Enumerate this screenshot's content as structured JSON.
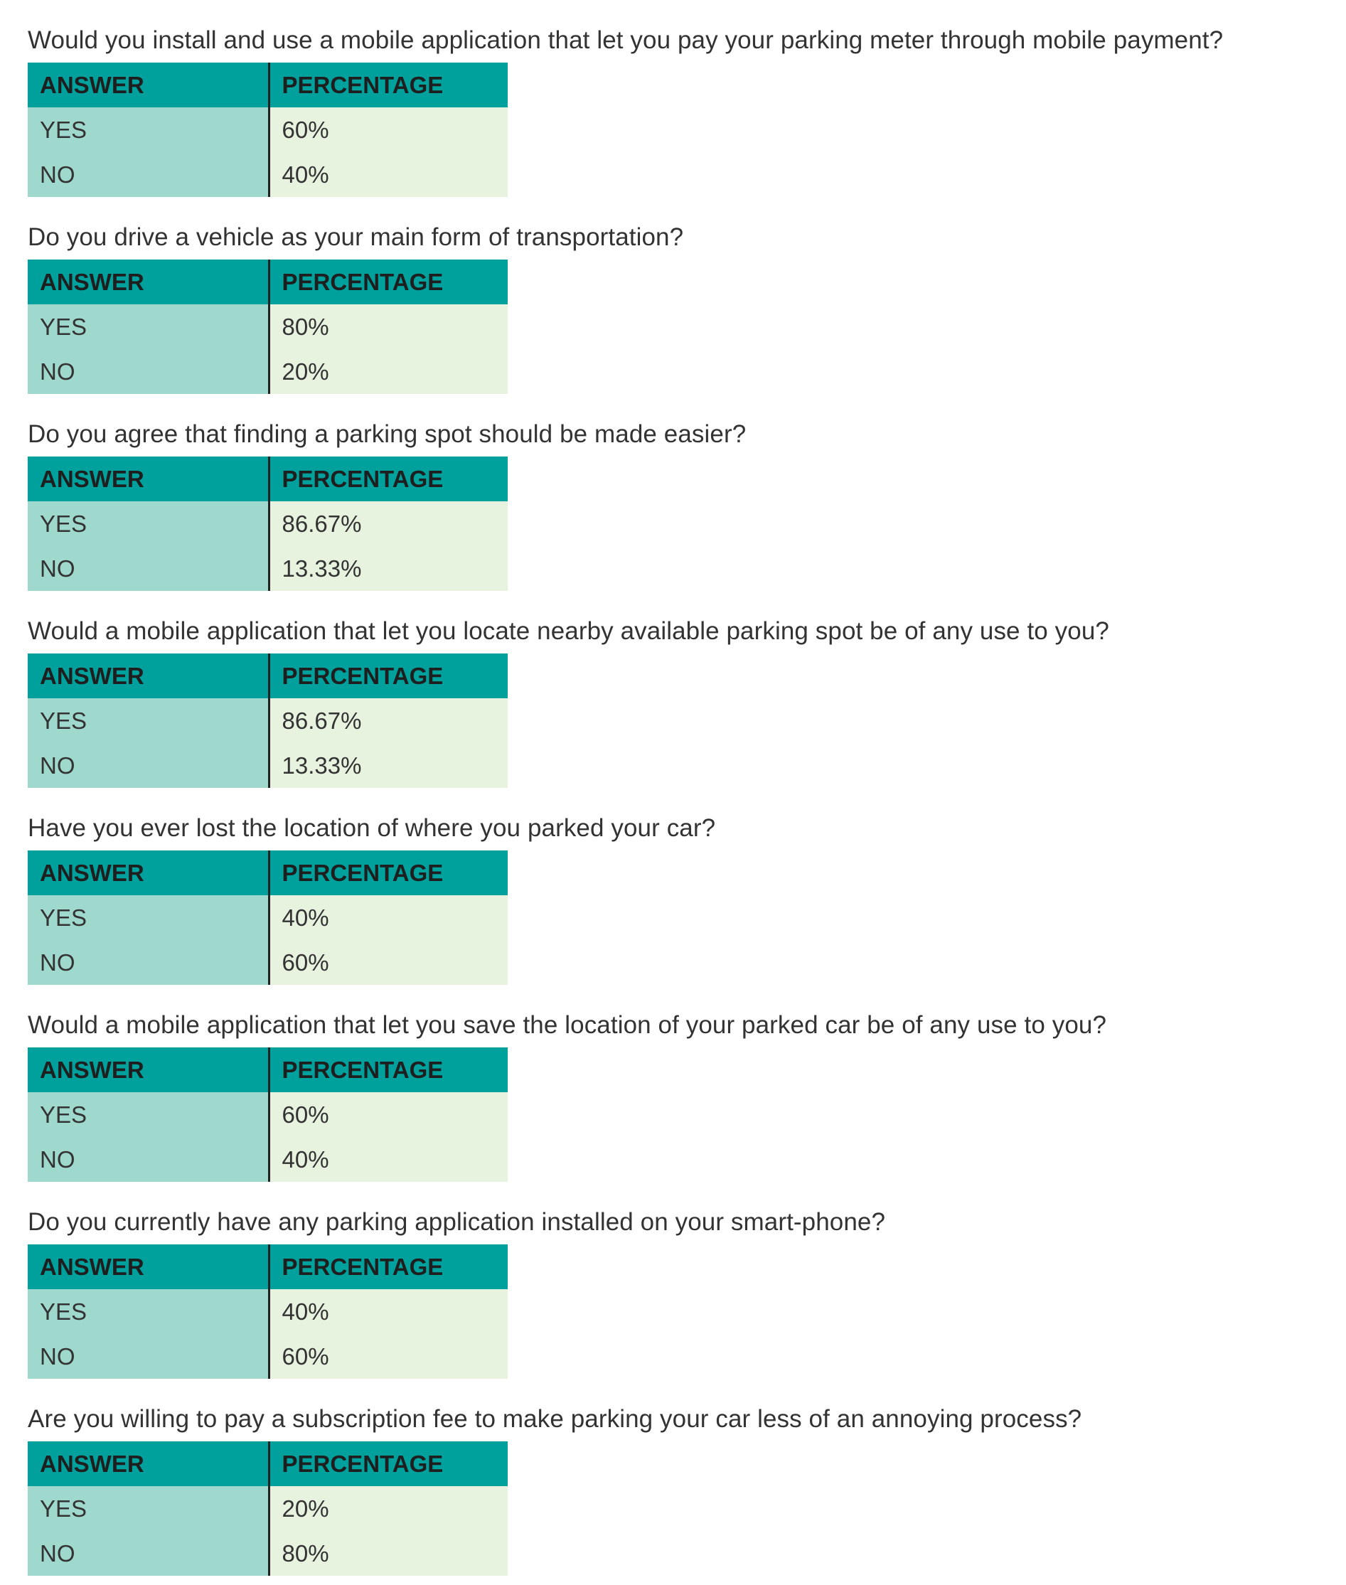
{
  "table_header": {
    "answer": "ANSWER",
    "percentage": "PERCENTAGE"
  },
  "questions": [
    {
      "text": "Would you install and use a mobile application that let you pay your parking meter through mobile payment?",
      "rows": [
        {
          "answer": "YES",
          "percentage": "60%"
        },
        {
          "answer": "NO",
          "percentage": "40%"
        }
      ]
    },
    {
      "text": "Do you drive a vehicle as your main form of transportation?",
      "rows": [
        {
          "answer": "YES",
          "percentage": "80%"
        },
        {
          "answer": "NO",
          "percentage": "20%"
        }
      ]
    },
    {
      "text": "Do you agree that finding a parking spot should be made easier?",
      "rows": [
        {
          "answer": "YES",
          "percentage": "86.67%"
        },
        {
          "answer": "NO",
          "percentage": "13.33%"
        }
      ]
    },
    {
      "text": "Would a mobile application that let you locate nearby available parking spot be of any use to you?",
      "rows": [
        {
          "answer": "YES",
          "percentage": "86.67%"
        },
        {
          "answer": "NO",
          "percentage": "13.33%"
        }
      ]
    },
    {
      "text": "Have you ever lost the location of where you parked your car?",
      "rows": [
        {
          "answer": "YES",
          "percentage": "40%"
        },
        {
          "answer": "NO",
          "percentage": "60%"
        }
      ]
    },
    {
      "text": "Would a mobile application that let you save the location of your parked car be of any use to you?",
      "rows": [
        {
          "answer": "YES",
          "percentage": "60%"
        },
        {
          "answer": "NO",
          "percentage": "40%"
        }
      ]
    },
    {
      "text": "Do you currently have any parking application installed on your smart-phone?",
      "rows": [
        {
          "answer": "YES",
          "percentage": "40%"
        },
        {
          "answer": "NO",
          "percentage": "60%"
        }
      ]
    },
    {
      "text": "Are you willing to pay a subscription fee to make parking your car less of an annoying process?",
      "rows": [
        {
          "answer": "YES",
          "percentage": "20%"
        },
        {
          "answer": "NO",
          "percentage": "80%"
        }
      ]
    }
  ],
  "colors": {
    "header_bg": "#00a19d",
    "answer_cell_bg": "#9fd8cc",
    "percentage_cell_bg": "#e7f2df",
    "divider": "#222222"
  }
}
